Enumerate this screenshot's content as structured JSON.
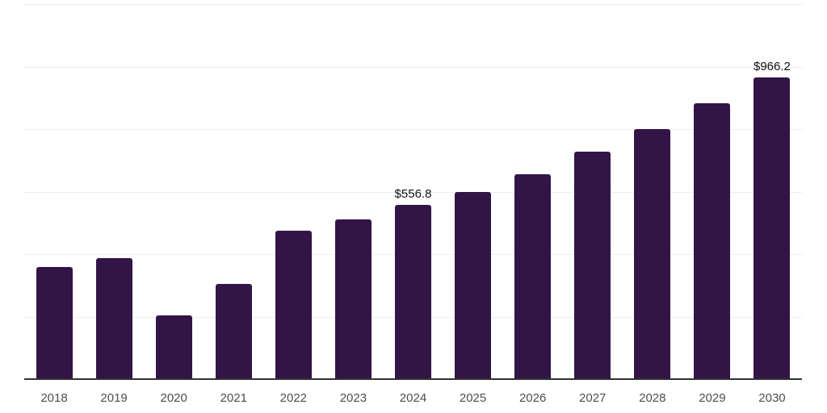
{
  "chart_data": {
    "type": "bar",
    "title": "",
    "xlabel": "",
    "ylabel": "",
    "categories": [
      "2018",
      "2019",
      "2020",
      "2021",
      "2022",
      "2023",
      "2024",
      "2025",
      "2026",
      "2027",
      "2028",
      "2029",
      "2030"
    ],
    "values": [
      360,
      386,
      205,
      305,
      476,
      512,
      556.8,
      600,
      655,
      727,
      801,
      883,
      966.2
    ],
    "annotations": [
      {
        "index": 6,
        "text": "$556.8"
      },
      {
        "index": 12,
        "text": "$966.2"
      }
    ],
    "ylim": [
      0,
      1200
    ],
    "gridline_step": 200,
    "grid": true,
    "legend": false,
    "colors": {
      "bar": "#321546",
      "gridline": "#ececec",
      "axis_line": "#333333",
      "tick_label": "#4d4d4d",
      "data_label": "#111111"
    }
  }
}
